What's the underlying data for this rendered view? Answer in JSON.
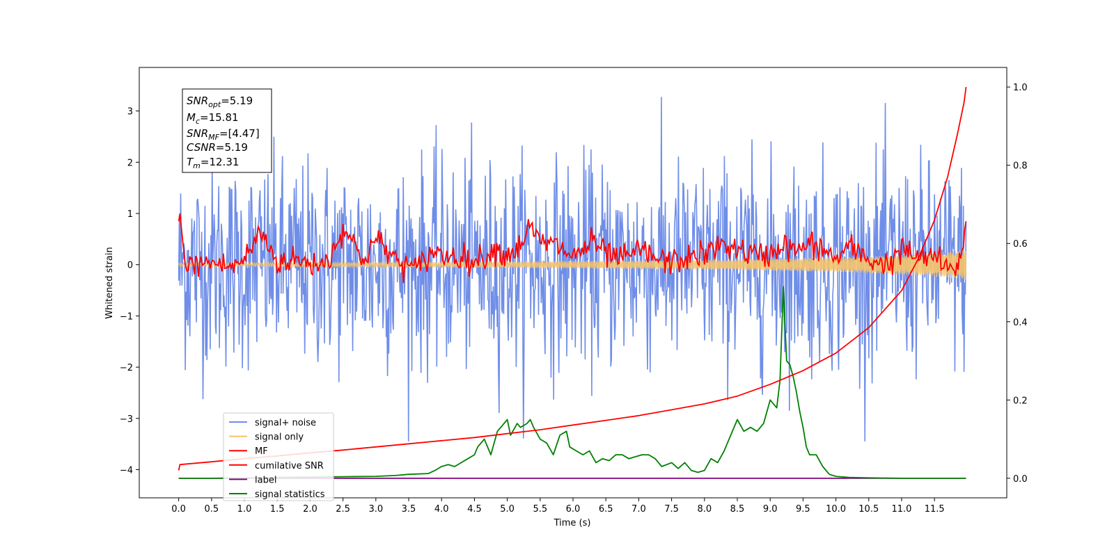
{
  "chart_data": {
    "type": "line",
    "xlabel": "Time (s)",
    "ylabel": "Whitened strain",
    "xlim": [
      -0.6,
      12.6
    ],
    "ylim": [
      -4.55,
      3.85
    ],
    "y2lim": [
      -0.05,
      1.05
    ],
    "x_ticks": [
      "0.0",
      "0.5",
      "1.0",
      "1.5",
      "2.0",
      "2.5",
      "3.0",
      "3.5",
      "4.0",
      "4.5",
      "5.0",
      "5.5",
      "6.0",
      "6.5",
      "7.0",
      "7.5",
      "8.0",
      "8.5",
      "9.0",
      "9.5",
      "10.0",
      "10.5",
      "11.0",
      "11.5"
    ],
    "y_ticks": [
      "−4",
      "−3",
      "−2",
      "−1",
      "0",
      "1",
      "2",
      "3"
    ],
    "y2_ticks": [
      "0.0",
      "0.2",
      "0.4",
      "0.6",
      "0.8",
      "1.0"
    ],
    "annotation": {
      "snr_opt": {
        "base": "SNR",
        "sub": "opt",
        "value": "=5.19"
      },
      "mc": {
        "base": "M",
        "sub": "c",
        "value": "=15.81"
      },
      "snr_mf": {
        "base": "SNR",
        "sub": "MF",
        "value": "=[4.47]"
      },
      "csnr": {
        "base": "CSNR",
        "value": "=5.19"
      },
      "tm": {
        "base": "T",
        "sub": "m",
        "value": "=12.31"
      }
    },
    "legend": [
      {
        "label": "signal+ noise",
        "color": "#6f8ee8"
      },
      {
        "label": "signal only",
        "color": "#f5c36b"
      },
      {
        "label": "MF",
        "color": "#ff0000"
      },
      {
        "label": "cumilative SNR",
        "color": "#ff0000"
      },
      {
        "label": "label",
        "color": "#800080"
      },
      {
        "label": "signal statistics",
        "color": "#008000"
      }
    ],
    "series": [
      {
        "name": "signal+ noise",
        "axis": "left",
        "description_points": 1200,
        "amplitude_std": 1.0,
        "mean": 0.0,
        "x_range": [
          0.0,
          11.98
        ],
        "color": "#6f8ee8"
      },
      {
        "name": "signal only",
        "axis": "left",
        "x_range": [
          0.0,
          11.98
        ],
        "envelope": [
          [
            0.0,
            0.03
          ],
          [
            2.0,
            0.04
          ],
          [
            4.0,
            0.05
          ],
          [
            6.0,
            0.07
          ],
          [
            8.0,
            0.09
          ],
          [
            10.0,
            0.14
          ],
          [
            11.0,
            0.19
          ],
          [
            11.5,
            0.23
          ],
          [
            11.9,
            0.28
          ],
          [
            11.98,
            0.3
          ]
        ],
        "color": "#f5c36b"
      },
      {
        "name": "MF",
        "axis": "left",
        "x": [
          0.0,
          0.02,
          0.05,
          0.1,
          0.15,
          0.2,
          0.3,
          0.5,
          0.8,
          1.0,
          1.25,
          1.5,
          1.8,
          2.0,
          2.3,
          2.5,
          2.8,
          3.0,
          3.3,
          3.6,
          3.9,
          4.0,
          4.2,
          4.5,
          4.8,
          5.0,
          5.2,
          5.3,
          5.5,
          5.8,
          6.0,
          6.3,
          6.5,
          6.8,
          7.0,
          7.3,
          7.5,
          7.8,
          8.0,
          8.3,
          8.6,
          8.9,
          9.2,
          9.4,
          9.6,
          9.8,
          10.0,
          10.2,
          10.5,
          10.8,
          11.0,
          11.3,
          11.5,
          11.7,
          11.9,
          11.98
        ],
        "values": [
          0.85,
          1.0,
          0.6,
          0.0,
          -0.1,
          0.05,
          0.0,
          0.05,
          -0.05,
          0.1,
          0.65,
          0.05,
          0.1,
          0.0,
          0.1,
          0.75,
          0.1,
          0.5,
          0.1,
          -0.1,
          0.3,
          0.15,
          0.2,
          0.05,
          0.3,
          0.2,
          0.35,
          0.75,
          0.45,
          0.35,
          0.15,
          0.45,
          0.2,
          0.1,
          0.3,
          0.1,
          0.05,
          0.15,
          0.2,
          0.4,
          0.25,
          0.15,
          0.4,
          0.25,
          0.4,
          0.3,
          0.1,
          0.35,
          0.1,
          0.0,
          0.3,
          0.1,
          0.2,
          -0.15,
          0.05,
          0.85
        ],
        "color": "#ff0000"
      },
      {
        "name": "cumilative SNR",
        "axis": "right",
        "x": [
          0.0,
          0.02,
          0.5,
          1.0,
          1.5,
          2.0,
          2.5,
          3.0,
          3.5,
          4.0,
          4.5,
          5.0,
          5.5,
          6.0,
          6.5,
          7.0,
          7.5,
          8.0,
          8.5,
          9.0,
          9.5,
          10.0,
          10.5,
          11.0,
          11.25,
          11.5,
          11.7,
          11.85,
          11.95,
          11.98
        ],
        "values": [
          0.02,
          0.035,
          0.042,
          0.05,
          0.057,
          0.065,
          0.072,
          0.08,
          0.088,
          0.096,
          0.104,
          0.114,
          0.124,
          0.136,
          0.148,
          0.16,
          0.175,
          0.19,
          0.21,
          0.24,
          0.275,
          0.32,
          0.385,
          0.48,
          0.56,
          0.66,
          0.77,
          0.88,
          0.96,
          1.0
        ],
        "color": "#ff0000"
      },
      {
        "name": "label",
        "axis": "right",
        "x": [
          0.0,
          11.98
        ],
        "values": [
          0.0,
          0.0
        ],
        "color": "#800080"
      },
      {
        "name": "signal statistics",
        "axis": "right",
        "x": [
          0.0,
          0.5,
          1.0,
          1.5,
          2.0,
          2.5,
          3.0,
          3.3,
          3.5,
          3.8,
          3.9,
          4.0,
          4.1,
          4.2,
          4.3,
          4.4,
          4.5,
          4.55,
          4.65,
          4.75,
          4.85,
          4.9,
          5.0,
          5.05,
          5.15,
          5.2,
          5.3,
          5.35,
          5.4,
          5.5,
          5.6,
          5.7,
          5.8,
          5.9,
          5.95,
          6.05,
          6.15,
          6.25,
          6.35,
          6.45,
          6.55,
          6.65,
          6.75,
          6.85,
          6.95,
          7.05,
          7.15,
          7.25,
          7.35,
          7.5,
          7.6,
          7.7,
          7.8,
          7.9,
          8.0,
          8.1,
          8.2,
          8.3,
          8.4,
          8.5,
          8.6,
          8.7,
          8.8,
          8.9,
          9.0,
          9.1,
          9.15,
          9.2,
          9.25,
          9.3,
          9.35,
          9.4,
          9.45,
          9.5,
          9.55,
          9.6,
          9.7,
          9.8,
          9.9,
          10.0,
          10.2,
          10.5,
          11.0,
          11.5,
          11.98
        ],
        "values": [
          0.0,
          0.0,
          0.001,
          0.002,
          0.003,
          0.004,
          0.005,
          0.007,
          0.01,
          0.012,
          0.02,
          0.03,
          0.035,
          0.03,
          0.04,
          0.05,
          0.06,
          0.08,
          0.1,
          0.06,
          0.12,
          0.13,
          0.15,
          0.11,
          0.14,
          0.13,
          0.14,
          0.15,
          0.13,
          0.1,
          0.09,
          0.06,
          0.11,
          0.12,
          0.08,
          0.07,
          0.06,
          0.07,
          0.04,
          0.05,
          0.045,
          0.06,
          0.06,
          0.05,
          0.055,
          0.06,
          0.06,
          0.05,
          0.03,
          0.04,
          0.025,
          0.04,
          0.02,
          0.015,
          0.02,
          0.05,
          0.04,
          0.07,
          0.11,
          0.15,
          0.12,
          0.13,
          0.12,
          0.14,
          0.2,
          0.18,
          0.25,
          0.49,
          0.3,
          0.29,
          0.26,
          0.22,
          0.17,
          0.13,
          0.08,
          0.06,
          0.06,
          0.03,
          0.01,
          0.005,
          0.002,
          0.001,
          0.0,
          0.0,
          0.0
        ],
        "color": "#008000"
      }
    ]
  }
}
